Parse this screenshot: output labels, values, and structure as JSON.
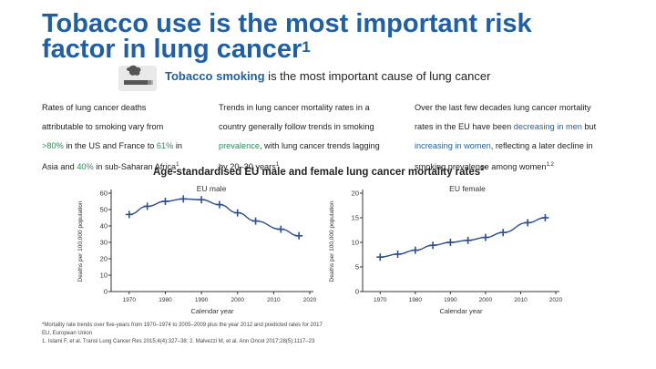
{
  "title": {
    "line1": "Tobacco use is the most important risk",
    "line2": "factor in lung cancer",
    "sup": "1"
  },
  "subtitle": {
    "bold": "Tobacco smoking",
    "rest": " is the most important cause of lung cancer",
    "icon": "cigarette-smoke-icon"
  },
  "columns": [
    {
      "l1": "Rates of lung cancer deaths",
      "l2": "attributable to smoking vary from",
      "l3_hl": ">80%",
      "l3_mid": " in the US and France to ",
      "l3_hl2": "61%",
      "l3_end": " in",
      "l4": "Asia and ",
      "l4_hl": "40%",
      "l4_end": " in sub-Saharan Africa",
      "l4_sup": "1"
    },
    {
      "l1": "Trends in lung cancer mortality rates in a",
      "l2": "country generally follow trends in smoking",
      "l3_hl": "prevalence",
      "l3_end": ", with lung cancer trends lagging",
      "l4": "by 20–30 years",
      "l4_sup": "1"
    },
    {
      "l1": "Over the last few decades lung cancer mortality",
      "l2a": "rates in the EU have been ",
      "l2_hl": "decreasing in men",
      "l2b": " but",
      "l3_hl": "increasing in women",
      "l3_end": ", reflecting a later decline in",
      "l4": "smoking prevalence among women",
      "l4_sup": "1,2"
    }
  ],
  "chart_heading": {
    "text": "Age-standardised EU male and female lung cancer mortality rates",
    "sup": "2*"
  },
  "colors": {
    "title": "#1f5fa5",
    "accent_green": "#2e8b57",
    "series": "#2d4e8e",
    "axis": "#333333"
  },
  "chart_data": [
    {
      "type": "line",
      "title": "EU male",
      "xlabel": "Calendar year",
      "ylabel": "Deaths per 100,000 population",
      "xlim": [
        1965,
        2020
      ],
      "ylim": [
        0,
        60
      ],
      "xticks": [
        1970,
        1980,
        1990,
        2000,
        2010,
        2020
      ],
      "yticks": [
        0,
        10,
        20,
        30,
        40,
        50,
        60
      ],
      "series": [
        {
          "name": "EU male",
          "x": [
            1970,
            1975,
            1980,
            1985,
            1990,
            1995,
            2000,
            2005,
            2012,
            2017
          ],
          "y": [
            47,
            52,
            55,
            56.5,
            56,
            53,
            48,
            43,
            38,
            34
          ]
        }
      ]
    },
    {
      "type": "line",
      "title": "EU female",
      "xlabel": "Calendar year",
      "ylabel": "Deaths per 100,000 population",
      "xlim": [
        1965,
        2020
      ],
      "ylim": [
        0,
        20
      ],
      "xticks": [
        1970,
        1980,
        1990,
        2000,
        2010,
        2020
      ],
      "yticks": [
        0,
        5,
        10,
        15,
        20
      ],
      "series": [
        {
          "name": "EU female",
          "x": [
            1970,
            1975,
            1980,
            1985,
            1990,
            1995,
            2000,
            2005,
            2012,
            2017
          ],
          "y": [
            7,
            7.6,
            8.4,
            9.4,
            10,
            10.4,
            11,
            12,
            14,
            15
          ]
        }
      ]
    }
  ],
  "footnotes": {
    "l1": "*Mortality rate trends over five-years from 1970–1974 to 2005–2009 plus the year 2012 and predicted rates for 2017",
    "l2": "EU, European Union",
    "l3": "1. Islami F, et al. Transl Lung Cancer Res 2015;4(4):327–38; 2. Malvezzi M, et al. Ann Oncol 2017;28(5):1117–23"
  }
}
